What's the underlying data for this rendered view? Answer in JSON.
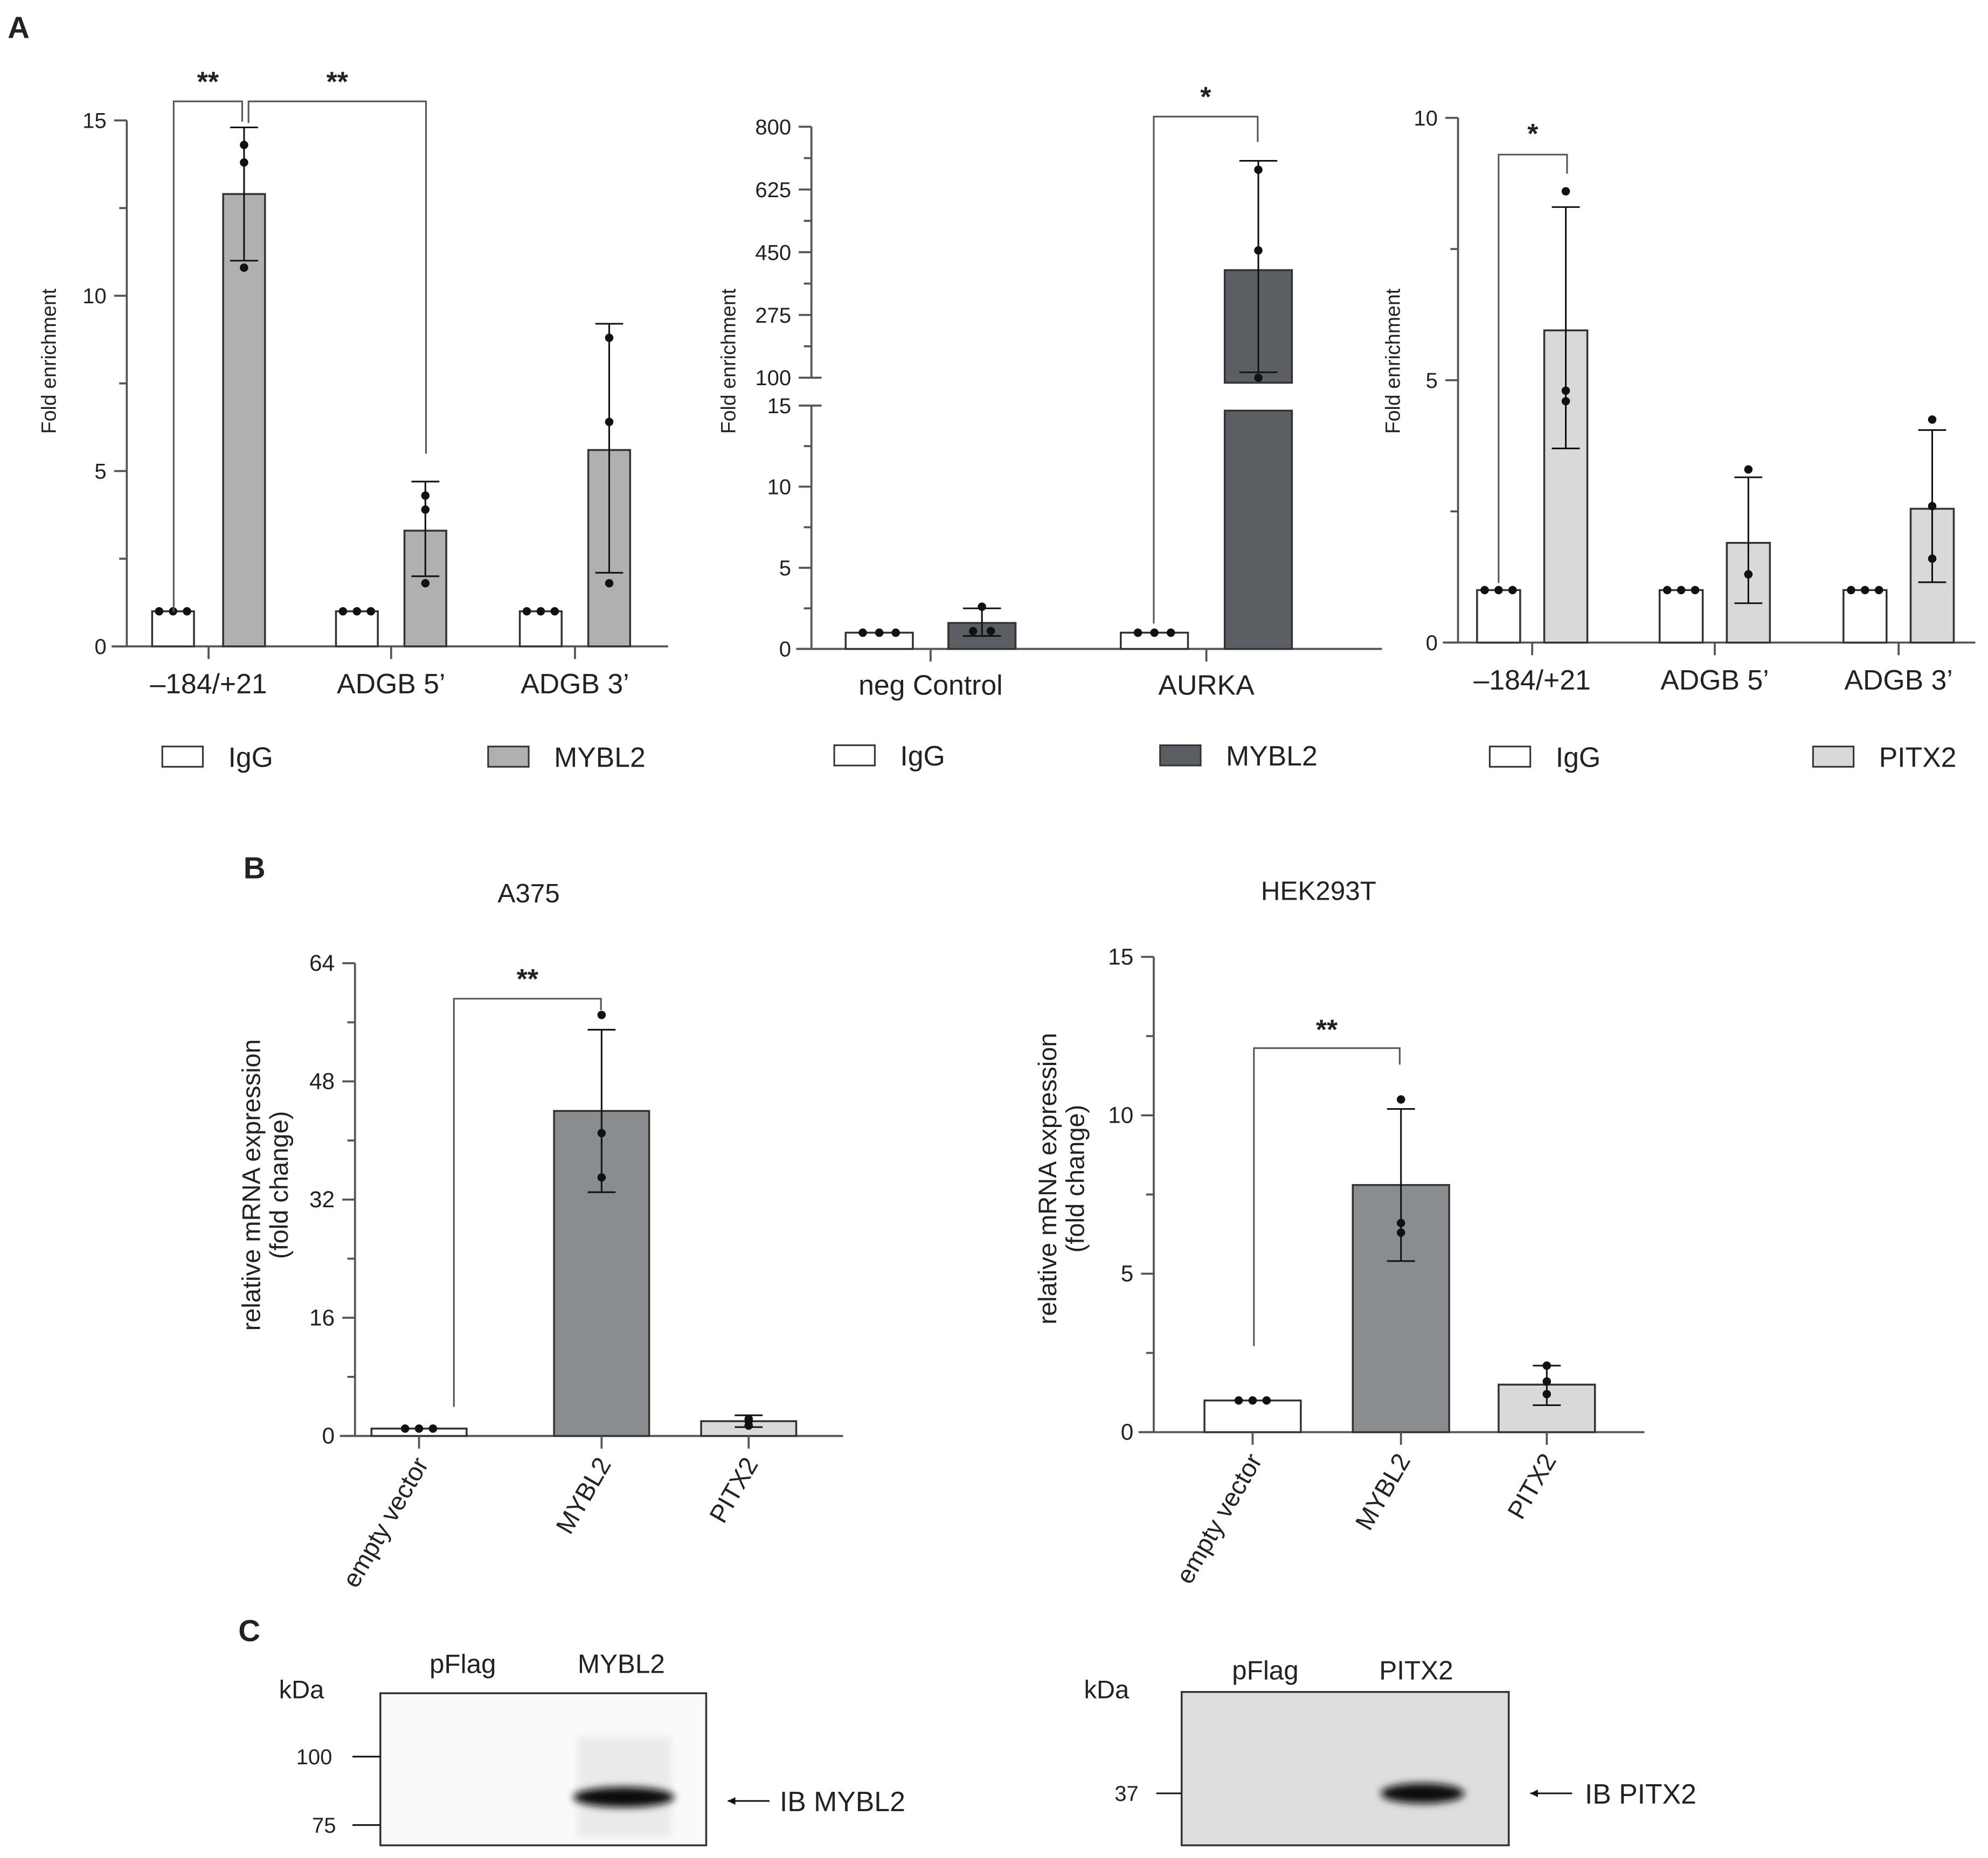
{
  "panel_labels": {
    "a": "A",
    "b": "B",
    "c": "C"
  },
  "chart_data": [
    {
      "id": "a1",
      "type": "bar",
      "ylabel": "Fold enrichment",
      "ylim": [
        0,
        15
      ],
      "yticks": [
        "0",
        "5",
        "10",
        "15"
      ],
      "categories": [
        "–184/+21",
        "ADGB 5’",
        "ADGB 3’"
      ],
      "legend": [
        "IgG",
        "MYBL2"
      ],
      "colors": [
        "#ffffff",
        "#b0b0b0"
      ],
      "series": [
        {
          "name": "IgG",
          "values": [
            1,
            1,
            1
          ],
          "err": [
            [
              1,
              1
            ],
            [
              1,
              1
            ],
            [
              1,
              1
            ]
          ],
          "points": [
            [
              1,
              1,
              1
            ],
            [
              1,
              1,
              1
            ],
            [
              1,
              1,
              1
            ]
          ]
        },
        {
          "name": "MYBL2",
          "values": [
            12.9,
            3.3,
            5.6
          ],
          "err": [
            [
              11.0,
              14.8
            ],
            [
              2.0,
              4.7
            ],
            [
              2.1,
              9.2
            ]
          ],
          "points": [
            [
              14.3,
              13.8,
              10.8
            ],
            [
              4.3,
              3.9,
              1.8
            ],
            [
              8.8,
              6.4,
              1.8
            ]
          ]
        }
      ],
      "significance": [
        {
          "label": "**",
          "from": "IgG –184/+21",
          "to": "MYBL2 –184/+21"
        },
        {
          "label": "**",
          "from": "MYBL2 –184/+21",
          "to": "MYBL2 ADGB 5’"
        }
      ]
    },
    {
      "id": "a2",
      "type": "bar",
      "ylabel": "Fold enrichment",
      "axis_break": true,
      "ylim_lower": [
        0,
        15
      ],
      "ylim_upper": [
        100,
        800
      ],
      "yticks_lower": [
        "0",
        "5",
        "10",
        "15"
      ],
      "yticks_upper": [
        "100",
        "275",
        "450",
        "625",
        "800"
      ],
      "categories": [
        "neg Control",
        "AURKA"
      ],
      "legend": [
        "IgG",
        "MYBL2"
      ],
      "colors": [
        "#ffffff",
        "#5b5e62"
      ],
      "series": [
        {
          "name": "IgG",
          "values": [
            1,
            1
          ],
          "err": [
            [
              1,
              1
            ],
            [
              1,
              1
            ]
          ],
          "points": [
            [
              1,
              1,
              1
            ],
            [
              1,
              1,
              1
            ]
          ]
        },
        {
          "name": "MYBL2",
          "values": [
            1.6,
            400
          ],
          "err": [
            [
              0.8,
              2.5
            ],
            [
              115,
              705
            ]
          ],
          "points": [
            [
              2.6,
              1.1,
              1.1
            ],
            [
              680,
              455,
              100
            ]
          ]
        }
      ],
      "significance": [
        {
          "label": "*",
          "from": "IgG AURKA",
          "to": "MYBL2 AURKA"
        }
      ]
    },
    {
      "id": "a3",
      "type": "bar",
      "ylabel": "Fold enrichment",
      "ylim": [
        0,
        10
      ],
      "yticks": [
        "0",
        "5",
        "10"
      ],
      "categories": [
        "–184/+21",
        "ADGB 5’",
        "ADGB 3’"
      ],
      "legend": [
        "IgG",
        "PITX2"
      ],
      "colors": [
        "#ffffff",
        "#d9d9d9"
      ],
      "series": [
        {
          "name": "IgG",
          "values": [
            1,
            1,
            1
          ],
          "err": [
            [
              1,
              1
            ],
            [
              1,
              1
            ],
            [
              1,
              1
            ]
          ],
          "points": [
            [
              1,
              1,
              1
            ],
            [
              1,
              1,
              1
            ],
            [
              1,
              1,
              1
            ]
          ]
        },
        {
          "name": "PITX2",
          "values": [
            5.95,
            1.9,
            2.55
          ],
          "err": [
            [
              3.7,
              8.3
            ],
            [
              0.75,
              3.15
            ],
            [
              1.15,
              4.05
            ]
          ],
          "points": [
            [
              8.6,
              4.8,
              4.6
            ],
            [
              3.3,
              1.3,
              1.3
            ],
            [
              4.25,
              2.6,
              1.6
            ]
          ]
        }
      ],
      "significance": [
        {
          "label": "*",
          "from": "IgG –184/+21",
          "to": "PITX2 –184/+21"
        }
      ]
    },
    {
      "id": "b1",
      "type": "bar",
      "title": "A375",
      "ylabel": [
        "relative mRNA expression",
        "(fold change)"
      ],
      "ylim": [
        0,
        64
      ],
      "yticks": [
        "0",
        "16",
        "32",
        "48",
        "64"
      ],
      "categories": [
        "empty vector",
        "MYBL2",
        "PITX2"
      ],
      "colors": [
        "#ffffff",
        "#8a8d90",
        "#d9d9d9"
      ],
      "values": [
        1,
        44,
        2
      ],
      "err": [
        [
          1,
          1
        ],
        [
          33,
          55
        ],
        [
          1.2,
          2.8
        ]
      ],
      "points": [
        [
          1,
          1,
          1
        ],
        [
          57,
          41,
          35
        ],
        [
          2.3,
          2.0,
          1.4
        ]
      ],
      "significance": [
        {
          "label": "**",
          "from": "empty vector",
          "to": "MYBL2"
        }
      ]
    },
    {
      "id": "b2",
      "type": "bar",
      "title": "HEK293T",
      "ylabel": [
        "relative mRNA expression",
        "(fold change)"
      ],
      "ylim": [
        0,
        15
      ],
      "yticks": [
        "0",
        "5",
        "10",
        "15"
      ],
      "categories": [
        "empty vector",
        "MYBL2",
        "PITX2"
      ],
      "colors": [
        "#ffffff",
        "#8a8d90",
        "#d9d9d9"
      ],
      "values": [
        1,
        7.8,
        1.5
      ],
      "err": [
        [
          1,
          1
        ],
        [
          5.4,
          10.2
        ],
        [
          0.85,
          2.1
        ]
      ],
      "points": [
        [
          1,
          1,
          1
        ],
        [
          10.5,
          6.6,
          6.3
        ],
        [
          2.1,
          1.6,
          1.2
        ]
      ],
      "significance": [
        {
          "label": "**",
          "from": "empty vector",
          "to": "MYBL2"
        }
      ]
    }
  ],
  "blots": [
    {
      "id": "c1",
      "unit": "kDa",
      "lanes": [
        "pFlag",
        "MYBL2"
      ],
      "markers": [
        "100",
        "75"
      ],
      "label": "IB MYBL2"
    },
    {
      "id": "c2",
      "unit": "kDa",
      "lanes": [
        "pFlag",
        "PITX2"
      ],
      "markers": [
        "37"
      ],
      "label": "IB PITX2"
    }
  ]
}
